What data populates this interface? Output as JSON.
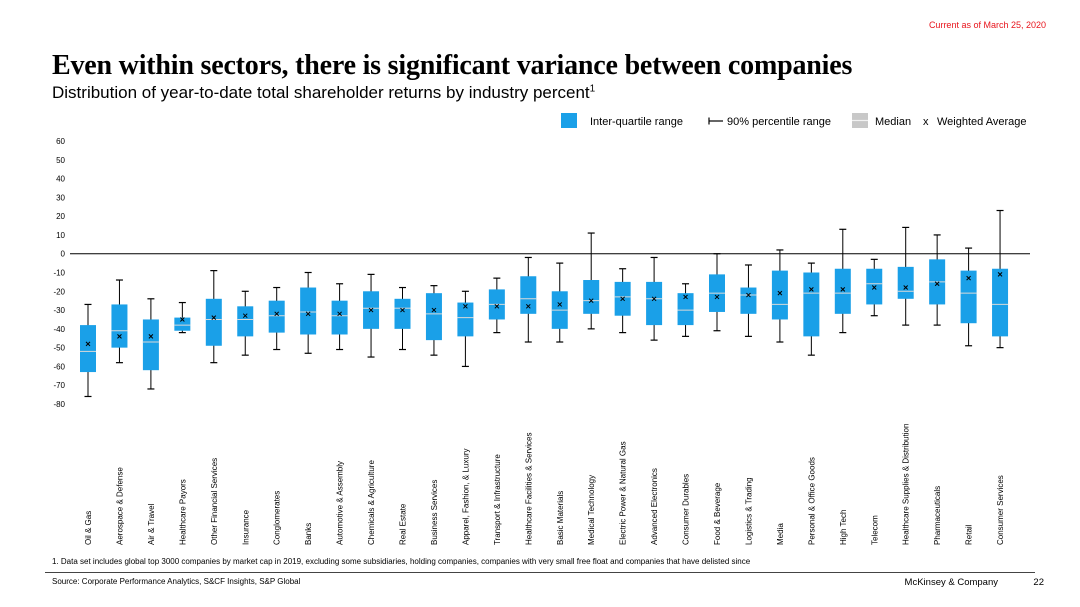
{
  "header": {
    "as_of": "Current as of March 25, 2020",
    "title": "Even within sectors, there is significant variance between companies",
    "subtitle": "Distribution of year-to-date total shareholder returns by industry percent",
    "subtitle_sup": "1"
  },
  "footer": {
    "footnote": "1.   Data set includes global top 3000 companies by market cap in 2019, excluding some subsidiaries, holding companies, companies with very small free float and companies that have delisted since",
    "source": "Source: Corporate Performance Analytics, S&CF Insights, S&P Global",
    "brand": "McKinsey & Company",
    "page": "22"
  },
  "colors": {
    "box": "#1aa0e8",
    "median": "#d9d9d9",
    "accent_red": "#e8141c"
  },
  "chart_data": {
    "type": "box",
    "ylim": [
      -80,
      60
    ],
    "yticks": [
      60,
      50,
      40,
      30,
      20,
      10,
      0,
      -10,
      -20,
      -30,
      -40,
      -50,
      -60,
      -70,
      -80
    ],
    "legend": {
      "iqr": "Inter-quartile range",
      "range90": "90% percentile range",
      "median": "Median",
      "wavg": "Weighted Average",
      "wavg_marker": "x"
    },
    "categories": [
      {
        "name": "Oil & Gas",
        "p5": -76,
        "q1": -63,
        "median": -52,
        "q3": -38,
        "p95": -27,
        "wavg": -48
      },
      {
        "name": "Aerospace & Defense",
        "p5": -58,
        "q1": -50,
        "median": -41,
        "q3": -27,
        "p95": -14,
        "wavg": -44
      },
      {
        "name": "Air & Travel",
        "p5": -72,
        "q1": -62,
        "median": -47,
        "q3": -35,
        "p95": -24,
        "wavg": -44
      },
      {
        "name": "Healthcare Payors",
        "p5": -42,
        "q1": -41,
        "median": -38,
        "q3": -34,
        "p95": -26,
        "wavg": -35
      },
      {
        "name": "Other Financial Services",
        "p5": -58,
        "q1": -49,
        "median": -35,
        "q3": -24,
        "p95": -9,
        "wavg": -34
      },
      {
        "name": "Insurance",
        "p5": -54,
        "q1": -44,
        "median": -35,
        "q3": -28,
        "p95": -20,
        "wavg": -33
      },
      {
        "name": "Conglomerates",
        "p5": -51,
        "q1": -42,
        "median": -33,
        "q3": -25,
        "p95": -18,
        "wavg": -32
      },
      {
        "name": "Banks",
        "p5": -53,
        "q1": -43,
        "median": -31,
        "q3": -18,
        "p95": -10,
        "wavg": -32
      },
      {
        "name": "Automotive & Assembly",
        "p5": -51,
        "q1": -43,
        "median": -33,
        "q3": -25,
        "p95": -16,
        "wavg": -32
      },
      {
        "name": "Chemicals & Agriculture",
        "p5": -55,
        "q1": -40,
        "median": -29,
        "q3": -20,
        "p95": -11,
        "wavg": -30
      },
      {
        "name": "Real Estate",
        "p5": -51,
        "q1": -40,
        "median": -29,
        "q3": -24,
        "p95": -18,
        "wavg": -30
      },
      {
        "name": "Business Services",
        "p5": -54,
        "q1": -46,
        "median": -32,
        "q3": -21,
        "p95": -17,
        "wavg": -30
      },
      {
        "name": "Apparel, Fashion, & Luxury",
        "p5": -60,
        "q1": -44,
        "median": -34,
        "q3": -26,
        "p95": -20,
        "wavg": -28
      },
      {
        "name": "Transport & Infrastructure",
        "p5": -42,
        "q1": -35,
        "median": -27,
        "q3": -19,
        "p95": -13,
        "wavg": -28
      },
      {
        "name": "Healthcare Facilities & Services",
        "p5": -47,
        "q1": -32,
        "median": -24,
        "q3": -12,
        "p95": -2,
        "wavg": -28
      },
      {
        "name": "Basic Materials",
        "p5": -47,
        "q1": -40,
        "median": -30,
        "q3": -20,
        "p95": -5,
        "wavg": -27
      },
      {
        "name": "Medical Technology",
        "p5": -40,
        "q1": -32,
        "median": -25,
        "q3": -14,
        "p95": 11,
        "wavg": -25
      },
      {
        "name": "Electric Power & Natural Gas",
        "p5": -42,
        "q1": -33,
        "median": -23,
        "q3": -15,
        "p95": -8,
        "wavg": -24
      },
      {
        "name": "Advanced Electronics",
        "p5": -46,
        "q1": -38,
        "median": -24,
        "q3": -15,
        "p95": -2,
        "wavg": -24
      },
      {
        "name": "Consumer Durables",
        "p5": -44,
        "q1": -38,
        "median": -30,
        "q3": -21,
        "p95": -16,
        "wavg": -23
      },
      {
        "name": "Food & Beverage",
        "p5": -41,
        "q1": -31,
        "median": -21,
        "q3": -11,
        "p95": 0,
        "wavg": -23
      },
      {
        "name": "Logistics & Trading",
        "p5": -44,
        "q1": -32,
        "median": -22,
        "q3": -18,
        "p95": -6,
        "wavg": -22
      },
      {
        "name": "Media",
        "p5": -47,
        "q1": -35,
        "median": -27,
        "q3": -9,
        "p95": 2,
        "wavg": -21
      },
      {
        "name": "Personal & Office Goods",
        "p5": -54,
        "q1": -44,
        "median": -21,
        "q3": -10,
        "p95": -5,
        "wavg": -19
      },
      {
        "name": "High Tech",
        "p5": -42,
        "q1": -32,
        "median": -21,
        "q3": -8,
        "p95": 13,
        "wavg": -19
      },
      {
        "name": "Telecom",
        "p5": -33,
        "q1": -27,
        "median": -16,
        "q3": -8,
        "p95": -3,
        "wavg": -18
      },
      {
        "name": "Healthcare Supplies & Distribution",
        "p5": -38,
        "q1": -24,
        "median": -20,
        "q3": -7,
        "p95": 14,
        "wavg": -18
      },
      {
        "name": "Pharmaceuticals",
        "p5": -38,
        "q1": -27,
        "median": -15,
        "q3": -3,
        "p95": 10,
        "wavg": -16
      },
      {
        "name": "Retail",
        "p5": -49,
        "q1": -37,
        "median": -21,
        "q3": -9,
        "p95": 3,
        "wavg": -13
      },
      {
        "name": "Consumer Services",
        "p5": -50,
        "q1": -44,
        "median": -27,
        "q3": -8,
        "p95": 23,
        "wavg": -11
      }
    ]
  }
}
